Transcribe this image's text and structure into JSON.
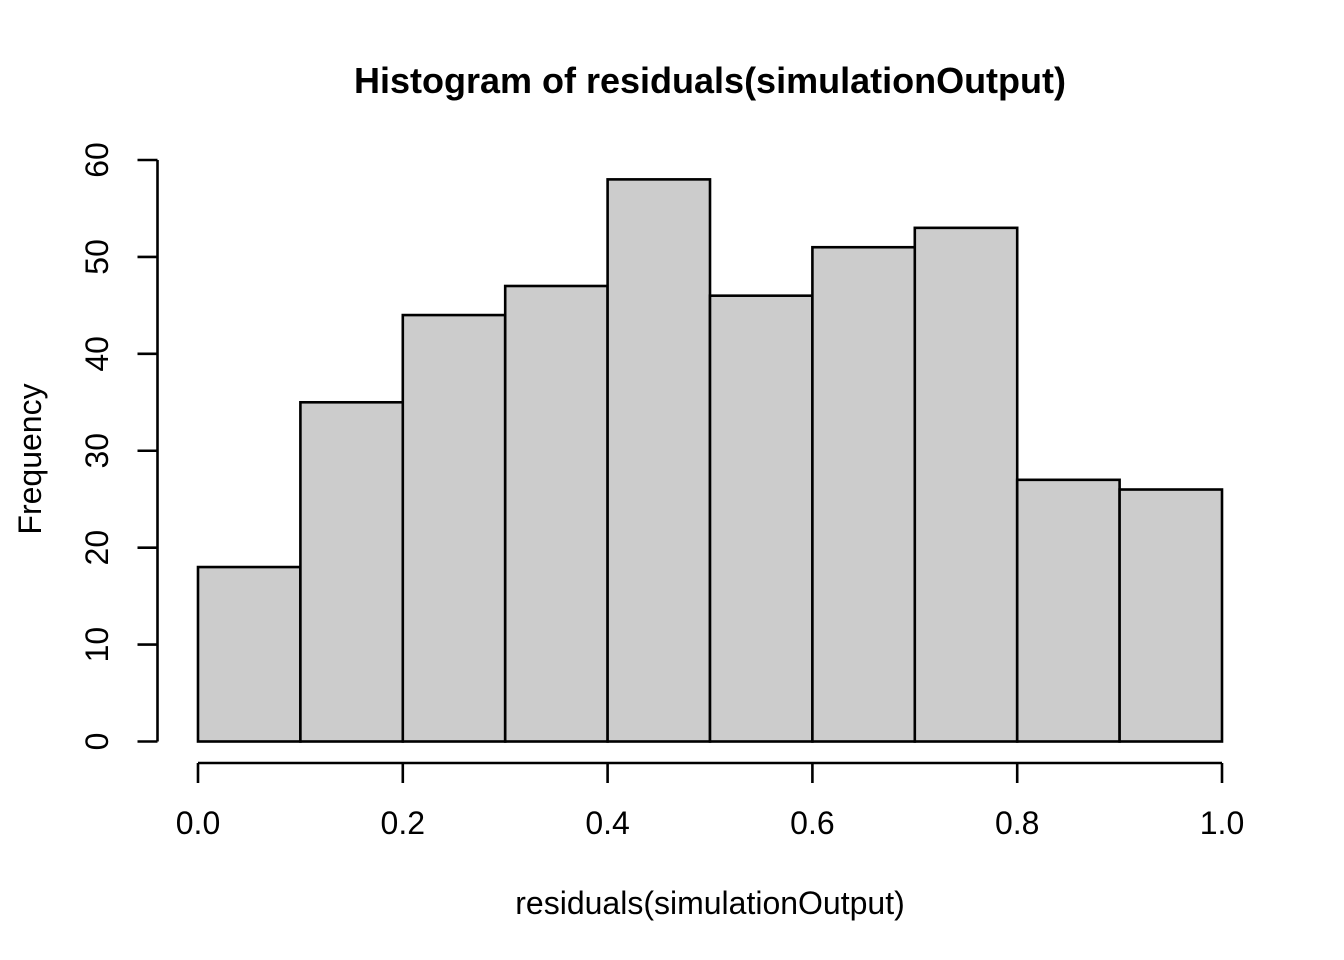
{
  "figure": {
    "background": "#FFFFFF"
  },
  "chart_data": {
    "type": "bar",
    "subtype": "histogram",
    "title": "Histogram of residuals(simulationOutput)",
    "xlabel": "residuals(simulationOutput)",
    "ylabel": "Frequency",
    "bin_edges": [
      0.0,
      0.1,
      0.2,
      0.3,
      0.4,
      0.5,
      0.6,
      0.7,
      0.8,
      0.9,
      1.0
    ],
    "categories": [
      "0.0-0.1",
      "0.1-0.2",
      "0.2-0.3",
      "0.3-0.4",
      "0.4-0.5",
      "0.5-0.6",
      "0.6-0.7",
      "0.7-0.8",
      "0.8-0.9",
      "0.9-1.0"
    ],
    "values": [
      18,
      35,
      44,
      47,
      58,
      46,
      51,
      53,
      27,
      26
    ],
    "x_ticks": [
      {
        "value": 0.0,
        "label": "0.0"
      },
      {
        "value": 0.2,
        "label": "0.2"
      },
      {
        "value": 0.4,
        "label": "0.4"
      },
      {
        "value": 0.6,
        "label": "0.6"
      },
      {
        "value": 0.8,
        "label": "0.8"
      },
      {
        "value": 1.0,
        "label": "1.0"
      }
    ],
    "y_ticks": [
      {
        "value": 0,
        "label": "0"
      },
      {
        "value": 10,
        "label": "10"
      },
      {
        "value": 20,
        "label": "20"
      },
      {
        "value": 30,
        "label": "30"
      },
      {
        "value": 40,
        "label": "40"
      },
      {
        "value": 50,
        "label": "50"
      },
      {
        "value": 60,
        "label": "60"
      }
    ],
    "xlim": [
      0,
      1
    ],
    "ylim": [
      0,
      60
    ],
    "grid": false,
    "legend": false,
    "colors": {
      "bar_fill": "#CCCCCC",
      "bar_stroke": "#000000",
      "axis": "#000000",
      "text": "#000000"
    }
  }
}
